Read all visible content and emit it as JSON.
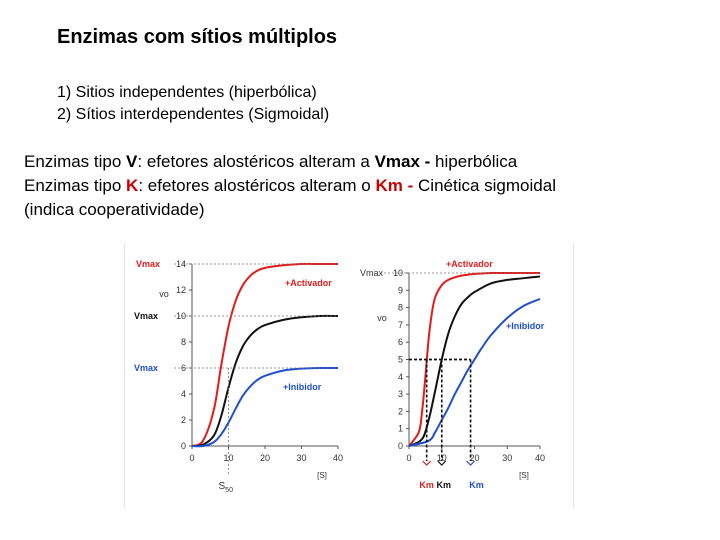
{
  "title": "Enzimas com sítios múltiplos",
  "list": [
    "1) Sitios independentes (hiperbólica)",
    "2) Sítios interdependentes (Sigmoidal)"
  ],
  "para": {
    "l1_prefix": "Enzimas tipo ",
    "l1_letter": "V",
    "l1_mid": ":  efetores alostéricos alteram a ",
    "l1_key": "Vmax",
    "l1_dash": " - ",
    "l1_suffix": "hiperbólica",
    "l2_prefix": "Enzimas tipo ",
    "l2_letter": "K",
    "l2_mid": ":  efetores alostéricos alteram o ",
    "l2_key": "Km",
    "l2_dash": " - ",
    "l2_suffix": "Cinética sigmoidal",
    "l3": "(indica cooperatividade)"
  },
  "colors": {
    "activator": "#e41b1b",
    "control": "#111111",
    "inhibitor": "#1f4fd1",
    "accent": "#cc0000"
  },
  "chart_data": [
    {
      "type": "line",
      "xlim": [
        0,
        40
      ],
      "ylim": [
        0,
        14
      ],
      "xticks": [
        0,
        10,
        20,
        30,
        40
      ],
      "yticks": [
        0,
        2,
        4,
        6,
        8,
        10,
        12,
        14
      ],
      "xlabel": "[S]",
      "ylabel": "vo",
      "series": [
        {
          "name": "+Activador",
          "color": "#e41b1b",
          "x": [
            0,
            3,
            6,
            8,
            10,
            12,
            14,
            16,
            18,
            20,
            25,
            30,
            35,
            40
          ],
          "y": [
            0,
            0.4,
            2.8,
            6.2,
            9.2,
            11.2,
            12.4,
            13.1,
            13.5,
            13.7,
            13.9,
            14,
            14,
            14
          ]
        },
        {
          "name": "",
          "color": "#111111",
          "x": [
            0,
            3,
            6,
            8,
            10,
            12,
            14,
            16,
            18,
            20,
            25,
            30,
            35,
            40
          ],
          "y": [
            0,
            0.1,
            0.8,
            2.3,
            4.5,
            6.4,
            7.7,
            8.5,
            9,
            9.3,
            9.7,
            9.9,
            10,
            10
          ]
        },
        {
          "name": "+Inibidor",
          "color": "#1f4fd1",
          "x": [
            0,
            3,
            6,
            8,
            10,
            12,
            14,
            16,
            18,
            20,
            25,
            30,
            35,
            40
          ],
          "y": [
            0,
            0,
            0.3,
            0.9,
            1.8,
            2.9,
            3.9,
            4.6,
            5.1,
            5.4,
            5.8,
            5.95,
            6,
            6
          ]
        }
      ],
      "annotations": {
        "vmax_top": "Vmax",
        "vmax_mid": "Vmax",
        "vmax_low": "Vmax",
        "s50": "S50"
      }
    },
    {
      "type": "line",
      "xlim": [
        0,
        40
      ],
      "ylim": [
        0,
        10
      ],
      "xticks": [
        0,
        10,
        20,
        30,
        40
      ],
      "yticks": [
        0,
        1,
        2,
        3,
        4,
        5,
        6,
        7,
        8,
        9,
        10
      ],
      "xlabel": "[S]",
      "ylabel": "vo",
      "series": [
        {
          "name": "+Activador",
          "color": "#e41b1b",
          "x": [
            0,
            3,
            4,
            5,
            6,
            7,
            8,
            10,
            12,
            14,
            16,
            18,
            20,
            25,
            30,
            35,
            40
          ],
          "y": [
            0,
            0.8,
            2,
            4,
            6.2,
            7.7,
            8.6,
            9.3,
            9.6,
            9.75,
            9.85,
            9.9,
            9.95,
            10,
            10,
            10,
            10
          ]
        },
        {
          "name": "",
          "color": "#111111",
          "x": [
            0,
            4,
            6,
            8,
            10,
            12,
            14,
            16,
            18,
            20,
            25,
            30,
            35,
            40
          ],
          "y": [
            0,
            0.4,
            1.5,
            3.2,
            5,
            6.5,
            7.5,
            8.2,
            8.6,
            8.9,
            9.4,
            9.6,
            9.7,
            9.8
          ]
        },
        {
          "name": "+Inibidor",
          "color": "#1f4fd1",
          "x": [
            0,
            6,
            8,
            10,
            12,
            14,
            16,
            18,
            20,
            22,
            25,
            30,
            35,
            40
          ],
          "y": [
            0,
            0.3,
            0.8,
            1.5,
            2.2,
            3,
            3.7,
            4.4,
            5,
            5.6,
            6.4,
            7.4,
            8.1,
            8.5
          ]
        }
      ],
      "annotations": {
        "vmax": "Vmax",
        "km_labels": [
          "Km",
          "Km",
          "Km"
        ]
      }
    }
  ]
}
